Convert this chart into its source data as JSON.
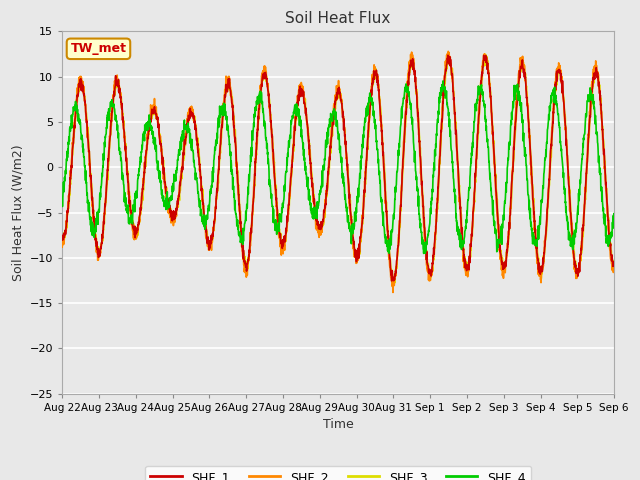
{
  "title": "Soil Heat Flux",
  "xlabel": "Time",
  "ylabel": "Soil Heat Flux (W/m2)",
  "ylim": [
    -25,
    15
  ],
  "yticks": [
    -25,
    -20,
    -15,
    -10,
    -5,
    0,
    5,
    10,
    15
  ],
  "plot_bg": "#e8e8e8",
  "fig_bg": "#e8e8e8",
  "grid_color": "white",
  "annotation_text": "TW_met",
  "annotation_bg": "#ffffcc",
  "annotation_border": "#cc8800",
  "annotation_text_color": "#cc0000",
  "legend_entries": [
    "SHF_1",
    "SHF_2",
    "SHF_3",
    "SHF_4"
  ],
  "line_colors": [
    "#cc0000",
    "#ff8800",
    "#dddd00",
    "#00cc00"
  ],
  "line_width": 1.2,
  "x_tick_labels": [
    "Aug 22",
    "Aug 23",
    "Aug 24",
    "Aug 25",
    "Aug 26",
    "Aug 27",
    "Aug 28",
    "Aug 29",
    "Aug 30",
    "Aug 31",
    "Sep 1",
    "Sep 2",
    "Sep 3",
    "Sep 4",
    "Sep 5",
    "Sep 6"
  ],
  "num_days": 15,
  "seed": 42
}
